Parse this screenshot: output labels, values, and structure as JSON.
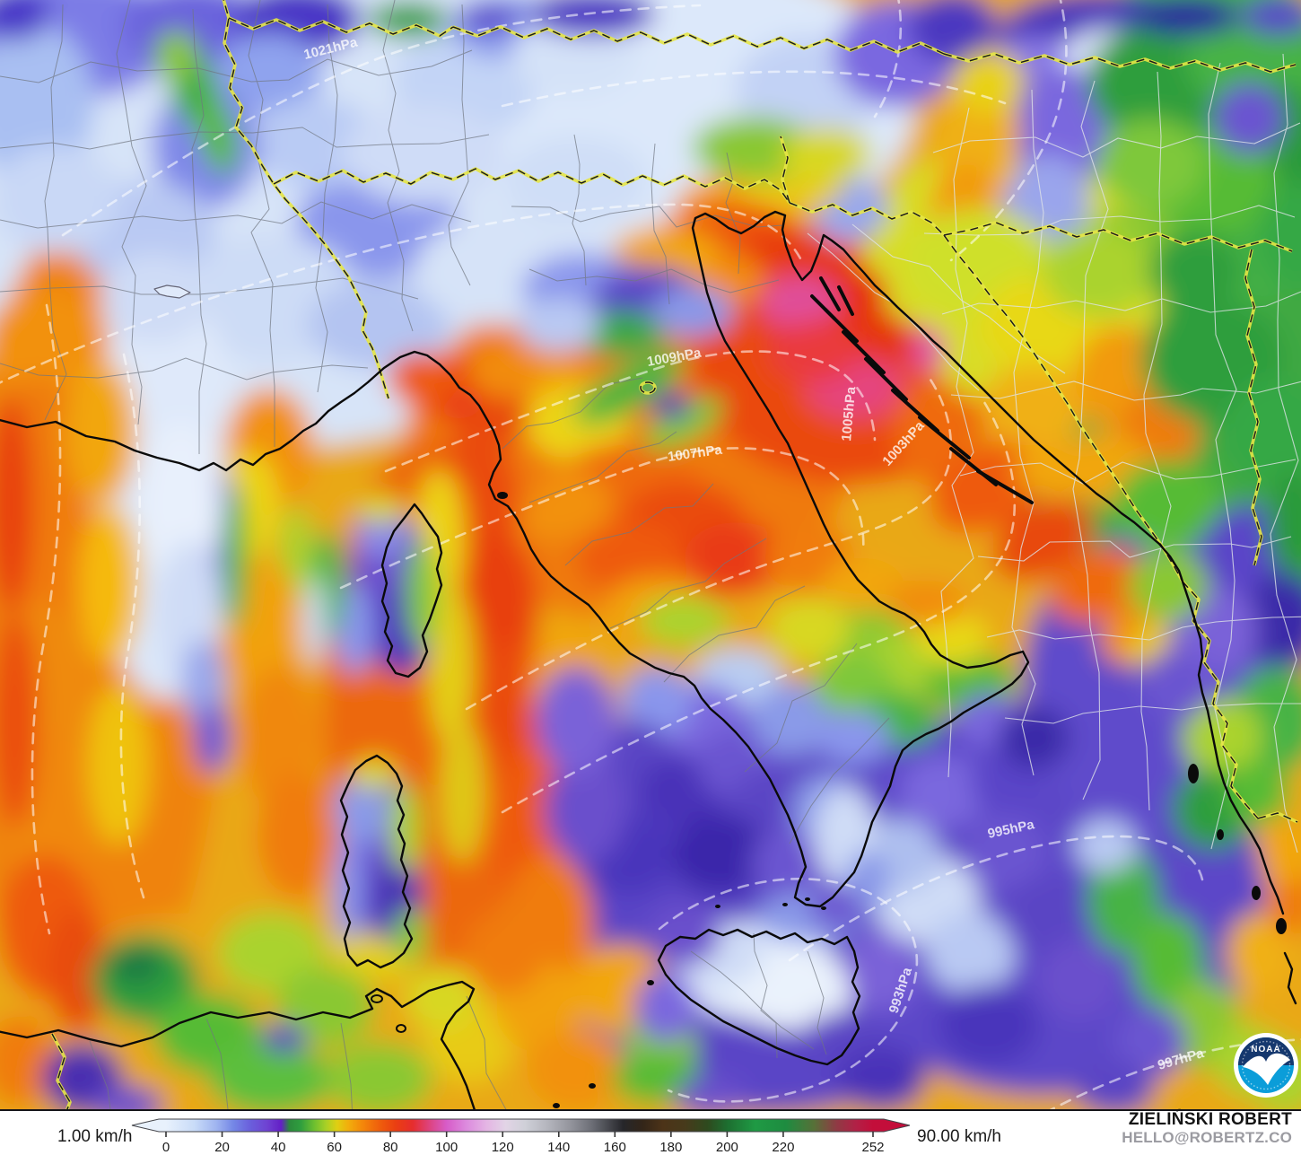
{
  "map": {
    "pressure_labels": [
      "1021hPa",
      "1009hPa",
      "1007hPa",
      "1005hPa",
      "1003hPa",
      "995hPa",
      "993hPa",
      "997hPa"
    ],
    "noaa_logo_text": "NOAA",
    "colors": {
      "coastline": "#0a0a0a",
      "country_border_glow": "#e6e645",
      "country_border_dash": "#1c1c1c",
      "admin_border_west": "#707680",
      "admin_border_east": "#dfe3e8",
      "isobar": "#ffffff",
      "magenta_peak": "#df56aa",
      "strong_wind_red": "#e6350e",
      "calm_light_blue": "#e8f0fc"
    }
  },
  "legend": {
    "unit_min_label": "1.00 km/h",
    "unit_max_label": "90.00 km/h",
    "ticks": [
      "0",
      "20",
      "40",
      "60",
      "80",
      "100",
      "120",
      "140",
      "160",
      "180",
      "200",
      "220",
      "252"
    ],
    "tick_values": [
      0,
      20,
      40,
      60,
      80,
      100,
      120,
      140,
      160,
      180,
      200,
      220,
      252
    ],
    "range": [
      0,
      252
    ],
    "gradient": [
      {
        "v": 0,
        "c": "#e8f1fc"
      },
      {
        "v": 10,
        "c": "#c9dcf8"
      },
      {
        "v": 18,
        "c": "#9fb4f0"
      },
      {
        "v": 24,
        "c": "#7487e6"
      },
      {
        "v": 30,
        "c": "#6a5fdc"
      },
      {
        "v": 36,
        "c": "#6f42d2"
      },
      {
        "v": 41,
        "c": "#641fc6"
      },
      {
        "v": 44,
        "c": "#2c8a3c"
      },
      {
        "v": 48,
        "c": "#2f9e3e"
      },
      {
        "v": 53,
        "c": "#6fc02f"
      },
      {
        "v": 57,
        "c": "#a8d026"
      },
      {
        "v": 61,
        "c": "#e0cf12"
      },
      {
        "v": 65,
        "c": "#f2ae0c"
      },
      {
        "v": 70,
        "c": "#f4870a"
      },
      {
        "v": 76,
        "c": "#ef5f0c"
      },
      {
        "v": 82,
        "c": "#ea3e12"
      },
      {
        "v": 88,
        "c": "#e62d2e"
      },
      {
        "v": 94,
        "c": "#dd4480"
      },
      {
        "v": 100,
        "c": "#d75cc8"
      },
      {
        "v": 107,
        "c": "#dc8ade"
      },
      {
        "v": 114,
        "c": "#e4b4e4"
      },
      {
        "v": 121,
        "c": "#e2d4e6"
      },
      {
        "v": 128,
        "c": "#cfd0d8"
      },
      {
        "v": 136,
        "c": "#b4b5bd"
      },
      {
        "v": 144,
        "c": "#94959d"
      },
      {
        "v": 152,
        "c": "#6b6d75"
      },
      {
        "v": 158,
        "c": "#45464c"
      },
      {
        "v": 163,
        "c": "#26262a"
      },
      {
        "v": 170,
        "c": "#332518"
      },
      {
        "v": 177,
        "c": "#4c3318"
      },
      {
        "v": 185,
        "c": "#473a1b"
      },
      {
        "v": 193,
        "c": "#2e4a1e"
      },
      {
        "v": 200,
        "c": "#1d6e30"
      },
      {
        "v": 210,
        "c": "#1f9a44"
      },
      {
        "v": 221,
        "c": "#1e8c40"
      },
      {
        "v": 231,
        "c": "#577038"
      },
      {
        "v": 239,
        "c": "#8f3a44"
      },
      {
        "v": 246,
        "c": "#b22046"
      },
      {
        "v": 252,
        "c": "#c30e3a"
      }
    ]
  },
  "credit": {
    "name": "ZIELIŃSKI ROBERT",
    "email": "HELLO@ROBERTZ.CO"
  }
}
